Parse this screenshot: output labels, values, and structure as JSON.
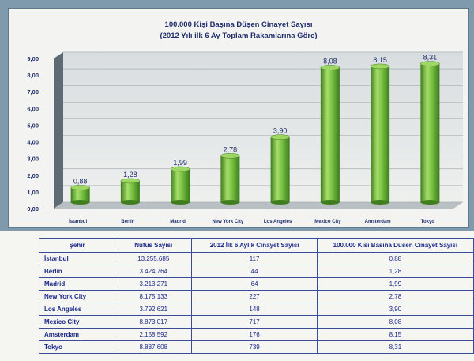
{
  "chart_data": {
    "type": "bar",
    "title": "100.000 Kişi Başına Düşen Cinayet Sayısı",
    "subtitle": "(2012 Yılı ilk 6 Ay Toplam Rakamlarına Göre)",
    "categories": [
      "İstanbul",
      "Berlin",
      "Madrid",
      "New York City",
      "Los Angeles",
      "Mexico City",
      "Amsterdam",
      "Tokyo"
    ],
    "values": [
      0.88,
      1.28,
      1.99,
      2.78,
      3.9,
      8.08,
      8.15,
      8.31
    ],
    "value_labels": [
      "0,88",
      "1,28",
      "1,99",
      "2,78",
      "3,90",
      "8,08",
      "8,15",
      "8,31"
    ],
    "yticks": [
      "0,00",
      "1,00",
      "2,00",
      "3,00",
      "4,00",
      "5,00",
      "6,00",
      "7,00",
      "8,00",
      "9,00"
    ],
    "ylim": [
      0,
      9
    ],
    "grid": true,
    "bar_color": "#6fb83c",
    "xlabel": "",
    "ylabel": ""
  },
  "table": {
    "headers": [
      "Şehir",
      "Nüfus Sayısı",
      "2012 İlk 6 Aylık Cinayet Sayısı",
      "100.000 Kisi Basina Dusen Cinayet Sayisi"
    ],
    "rows": [
      [
        "İstanbul",
        "13.255.685",
        "117",
        "0,88"
      ],
      [
        "Berlin",
        "3.424.764",
        "44",
        "1,28"
      ],
      [
        "Madrid",
        "3.213.271",
        "64",
        "1,99"
      ],
      [
        "New York City",
        "8.175.133",
        "227",
        "2,78"
      ],
      [
        "Los Angeles",
        "3.792.621",
        "148",
        "3,90"
      ],
      [
        "Mexico City",
        "8.873.017",
        "717",
        "8,08"
      ],
      [
        "Amsterdam",
        "2.158.592",
        "176",
        "8,15"
      ],
      [
        "Tokyo",
        "8.887.608",
        "739",
        "8,31"
      ]
    ]
  }
}
